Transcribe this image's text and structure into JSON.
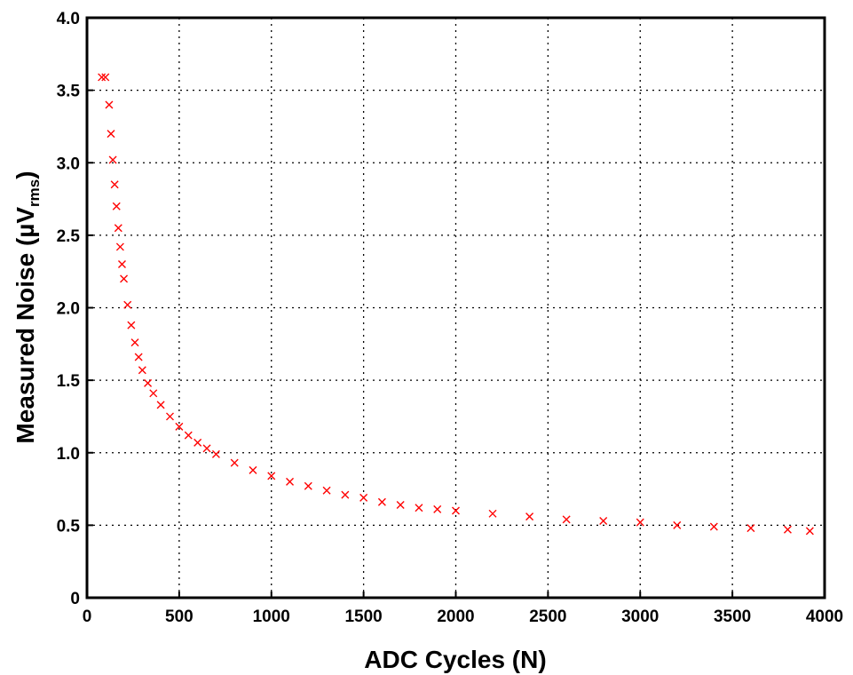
{
  "chart_data": {
    "type": "scatter",
    "title": "",
    "xlabel": "ADC Cycles (N)",
    "ylabel": {
      "main": "Measured Noise (µV",
      "subscript": "rms",
      "close": ")"
    },
    "xlim": [
      0,
      4000
    ],
    "ylim": [
      0,
      4.0
    ],
    "x_ticks": [
      "0",
      "500",
      "1000",
      "1500",
      "2000",
      "2500",
      "3000",
      "3500",
      "4000"
    ],
    "y_ticks": [
      "0",
      "0.5",
      "1.0",
      "1.5",
      "2.0",
      "2.5",
      "3.0",
      "3.5",
      "4.0"
    ],
    "grid": true,
    "marker": "x",
    "series": [
      {
        "color": "#ff0000",
        "x": [
          80,
          100,
          120,
          130,
          140,
          150,
          160,
          170,
          180,
          190,
          200,
          220,
          240,
          260,
          280,
          300,
          330,
          360,
          400,
          450,
          500,
          550,
          600,
          650,
          700,
          800,
          900,
          1000,
          1100,
          1200,
          1300,
          1400,
          1500,
          1600,
          1700,
          1800,
          1900,
          2000,
          2200,
          2400,
          2600,
          2800,
          3000,
          3200,
          3400,
          3600,
          3800,
          3920
        ],
        "y": [
          3.59,
          3.59,
          3.4,
          3.2,
          3.02,
          2.85,
          2.7,
          2.55,
          2.42,
          2.3,
          2.2,
          2.02,
          1.88,
          1.76,
          1.66,
          1.57,
          1.48,
          1.41,
          1.33,
          1.25,
          1.18,
          1.12,
          1.07,
          1.03,
          0.99,
          0.93,
          0.88,
          0.84,
          0.8,
          0.77,
          0.74,
          0.71,
          0.69,
          0.66,
          0.64,
          0.62,
          0.61,
          0.6,
          0.58,
          0.56,
          0.54,
          0.53,
          0.52,
          0.5,
          0.49,
          0.48,
          0.47,
          0.46
        ]
      }
    ]
  }
}
